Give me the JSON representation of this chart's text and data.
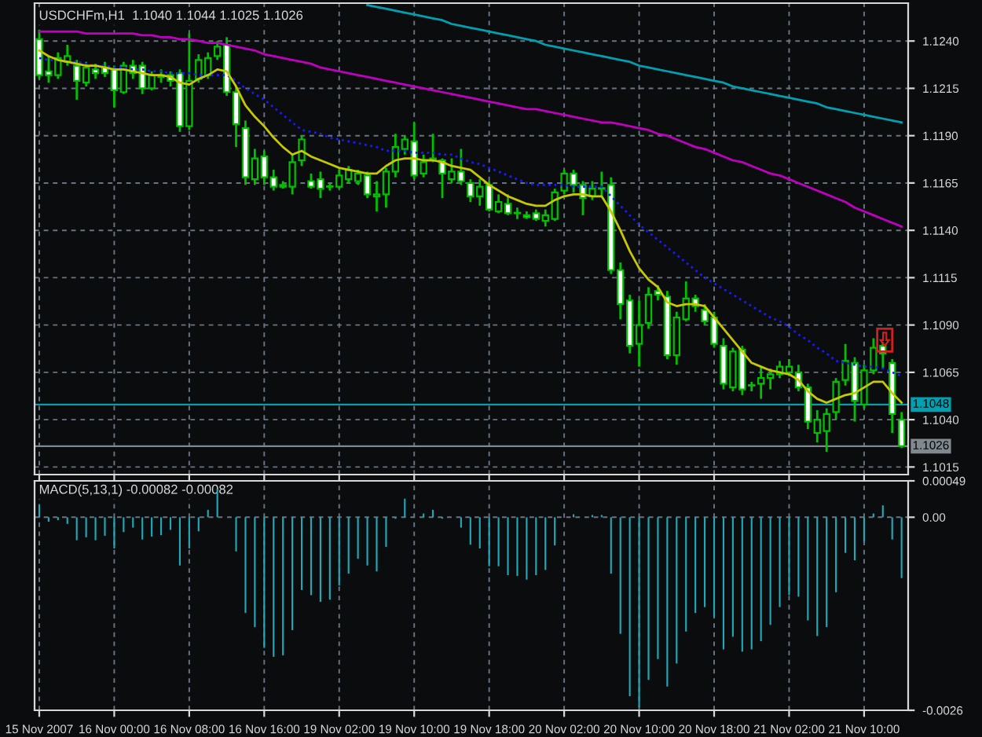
{
  "chart_data": [
    {
      "type": "candlestick",
      "title": "USDCHFm,H1  1.1040 1.1044 1.1025 1.1026",
      "ohlc": [
        [
          1.1241,
          1.1246,
          1.122,
          1.1222
        ],
        [
          1.1224,
          1.1232,
          1.1218,
          1.1222
        ],
        [
          1.1222,
          1.1234,
          1.122,
          1.1231
        ],
        [
          1.1229,
          1.1238,
          1.1227,
          1.1232
        ],
        [
          1.1227,
          1.123,
          1.1209,
          1.1219
        ],
        [
          1.1218,
          1.1229,
          1.1216,
          1.1226
        ],
        [
          1.1225,
          1.1228,
          1.122,
          1.1223
        ],
        [
          1.1226,
          1.1229,
          1.1221,
          1.1223
        ],
        [
          1.1225,
          1.1227,
          1.1205,
          1.1214
        ],
        [
          1.1213,
          1.1229,
          1.1212,
          1.1227
        ],
        [
          1.1227,
          1.123,
          1.122,
          1.1223
        ],
        [
          1.1227,
          1.1229,
          1.1212,
          1.1215
        ],
        [
          1.1215,
          1.1224,
          1.1214,
          1.1222
        ],
        [
          1.1221,
          1.1225,
          1.1218,
          1.1222
        ],
        [
          1.1222,
          1.1224,
          1.1216,
          1.1219
        ],
        [
          1.1223,
          1.1225,
          1.1192,
          1.1195
        ],
        [
          1.1195,
          1.1244,
          1.1193,
          1.1219
        ],
        [
          1.122,
          1.1233,
          1.1218,
          1.123
        ],
        [
          1.1222,
          1.1234,
          1.122,
          1.1231
        ],
        [
          1.1232,
          1.124,
          1.123,
          1.1237
        ],
        [
          1.1238,
          1.1242,
          1.1211,
          1.1213
        ],
        [
          1.1213,
          1.1216,
          1.1184,
          1.1196
        ],
        [
          1.1194,
          1.1198,
          1.1164,
          1.1168
        ],
        [
          1.1167,
          1.1183,
          1.1164,
          1.1178
        ],
        [
          1.1179,
          1.1182,
          1.1164,
          1.1168
        ],
        [
          1.1168,
          1.1172,
          1.1161,
          1.1163
        ],
        [
          1.1164,
          1.1166,
          1.1162,
          1.1163
        ],
        [
          1.1163,
          1.118,
          1.1159,
          1.1176
        ],
        [
          1.1177,
          1.119,
          1.1174,
          1.1188
        ],
        [
          1.1166,
          1.117,
          1.1162,
          1.1163
        ],
        [
          1.1167,
          1.1171,
          1.1157,
          1.1162
        ],
        [
          1.1163,
          1.1165,
          1.1161,
          1.1163
        ],
        [
          1.1163,
          1.1172,
          1.1162,
          1.1169
        ],
        [
          1.1167,
          1.1174,
          1.1165,
          1.1172
        ],
        [
          1.1166,
          1.1172,
          1.1164,
          1.117
        ],
        [
          1.1169,
          1.1171,
          1.1157,
          1.1159
        ],
        [
          1.1158,
          1.1166,
          1.115,
          1.1159
        ],
        [
          1.1159,
          1.1173,
          1.1152,
          1.1171
        ],
        [
          1.1171,
          1.1191,
          1.1168,
          1.1184
        ],
        [
          1.1183,
          1.119,
          1.118,
          1.1188
        ],
        [
          1.1187,
          1.1197,
          1.1167,
          1.1169
        ],
        [
          1.117,
          1.118,
          1.1168,
          1.1176
        ],
        [
          1.1177,
          1.1191,
          1.1176,
          1.1178
        ],
        [
          1.1177,
          1.1178,
          1.1157,
          1.117
        ],
        [
          1.1167,
          1.1178,
          1.1165,
          1.1171
        ],
        [
          1.1171,
          1.1183,
          1.1164,
          1.1166
        ],
        [
          1.1165,
          1.1167,
          1.1155,
          1.1158
        ],
        [
          1.1158,
          1.1167,
          1.1153,
          1.1163
        ],
        [
          1.1164,
          1.1166,
          1.115,
          1.1151
        ],
        [
          1.115,
          1.1159,
          1.1149,
          1.1155
        ],
        [
          1.1154,
          1.1159,
          1.1148,
          1.1149
        ],
        [
          1.1149,
          1.1152,
          1.1146,
          1.1149
        ],
        [
          1.1148,
          1.115,
          1.1146,
          1.1147
        ],
        [
          1.1149,
          1.1151,
          1.1145,
          1.1146
        ],
        [
          1.1145,
          1.1151,
          1.1142,
          1.1148
        ],
        [
          1.1146,
          1.1162,
          1.1145,
          1.116
        ],
        [
          1.1161,
          1.1172,
          1.1159,
          1.117
        ],
        [
          1.117,
          1.1172,
          1.116,
          1.1164
        ],
        [
          1.1164,
          1.1166,
          1.1148,
          1.1157
        ],
        [
          1.1158,
          1.1166,
          1.1156,
          1.1162
        ],
        [
          1.1162,
          1.1171,
          1.1158,
          1.1162
        ],
        [
          1.1164,
          1.1168,
          1.1117,
          1.1119
        ],
        [
          1.1119,
          1.1123,
          1.1093,
          1.1101
        ],
        [
          1.1103,
          1.1106,
          1.1075,
          1.1079
        ],
        [
          1.108,
          1.1103,
          1.1068,
          1.109
        ],
        [
          1.1091,
          1.111,
          1.1088,
          1.1106
        ],
        [
          1.1108,
          1.1111,
          1.1103,
          1.1106
        ],
        [
          1.1105,
          1.1108,
          1.1072,
          1.1074
        ],
        [
          1.1074,
          1.1097,
          1.1069,
          1.1094
        ],
        [
          1.1093,
          1.1113,
          1.1092,
          1.1104
        ],
        [
          1.1104,
          1.1106,
          1.1097,
          1.11
        ],
        [
          1.1098,
          1.1101,
          1.109,
          1.1092
        ],
        [
          1.1094,
          1.1097,
          1.1078,
          1.108
        ],
        [
          1.1079,
          1.1083,
          1.1056,
          1.1059
        ],
        [
          1.1057,
          1.1078,
          1.1055,
          1.1076
        ],
        [
          1.1077,
          1.1079,
          1.1053,
          1.1056
        ],
        [
          1.1058,
          1.106,
          1.1055,
          1.1058
        ],
        [
          1.1059,
          1.1068,
          1.1051,
          1.1062
        ],
        [
          1.1062,
          1.1067,
          1.1056,
          1.1064
        ],
        [
          1.1064,
          1.1071,
          1.1062,
          1.1068
        ],
        [
          1.1065,
          1.1072,
          1.1063,
          1.1068
        ],
        [
          1.1065,
          1.1069,
          1.1055,
          1.1057
        ],
        [
          1.1057,
          1.1059,
          1.1035,
          1.1039
        ],
        [
          1.1033,
          1.1045,
          1.1028,
          1.104
        ],
        [
          1.1034,
          1.1046,
          1.1023,
          1.1043
        ],
        [
          1.1044,
          1.1062,
          1.104,
          1.106
        ],
        [
          1.1061,
          1.108,
          1.1058,
          1.1071
        ],
        [
          1.107,
          1.1073,
          1.1039,
          1.105
        ],
        [
          1.1048,
          1.1069,
          1.1046,
          1.1066
        ],
        [
          1.1066,
          1.1083,
          1.1064,
          1.1078
        ],
        [
          1.1079,
          1.1081,
          1.1067,
          1.1075
        ],
        [
          1.107,
          1.1072,
          1.1033,
          1.1043
        ],
        [
          1.104,
          1.1044,
          1.1025,
          1.1026
        ]
      ],
      "series": [
        {
          "type": "line",
          "color": "#00a0b0",
          "line_style": "solid",
          "values": [
            null,
            null,
            null,
            null,
            null,
            null,
            null,
            null,
            null,
            null,
            null,
            null,
            null,
            null,
            null,
            null,
            null,
            null,
            null,
            null,
            null,
            null,
            null,
            null,
            null,
            null,
            null,
            null,
            null,
            null,
            null,
            null,
            null,
            null,
            null,
            1.1259,
            1.1258,
            1.1257,
            1.1256,
            1.1255,
            1.1254,
            1.1253,
            1.1252,
            1.1251,
            1.1249,
            1.1248,
            1.1247,
            1.1246,
            1.1245,
            1.1244,
            1.1243,
            1.1242,
            1.1241,
            1.124,
            1.1238,
            1.1237,
            1.1236,
            1.1235,
            1.1234,
            1.1233,
            1.1232,
            1.1231,
            1.123,
            1.1229,
            1.1227,
            1.1226,
            1.1225,
            1.1224,
            1.1223,
            1.1222,
            1.1221,
            1.122,
            1.1219,
            1.1218,
            1.1216,
            1.1215,
            1.1214,
            1.1213,
            1.1212,
            1.1211,
            1.121,
            1.1209,
            1.1208,
            1.1207,
            1.1205,
            1.1204,
            1.1203,
            1.1202,
            1.1201,
            1.12,
            1.1199,
            1.1198,
            1.1197
          ]
        },
        {
          "type": "line",
          "color": "#c000c0",
          "line_style": "solid",
          "values": [
            1.1245,
            1.1245,
            1.1245,
            1.1245,
            1.1245,
            1.1244,
            1.1244,
            1.1244,
            1.1244,
            1.1244,
            1.1244,
            1.1243,
            1.1243,
            1.1242,
            1.1242,
            1.1241,
            1.1241,
            1.124,
            1.1239,
            1.1239,
            1.1238,
            1.1237,
            1.1236,
            1.1235,
            1.1233,
            1.1232,
            1.1231,
            1.123,
            1.1229,
            1.1228,
            1.1226,
            1.1225,
            1.1224,
            1.1223,
            1.1222,
            1.1221,
            1.122,
            1.1219,
            1.1218,
            1.1217,
            1.1216,
            1.1215,
            1.1214,
            1.1213,
            1.1212,
            1.1211,
            1.121,
            1.1209,
            1.1208,
            1.1207,
            1.1206,
            1.1205,
            1.1204,
            1.1204,
            1.1203,
            1.1202,
            1.1201,
            1.12,
            1.1199,
            1.1198,
            1.1197,
            1.1197,
            1.1196,
            1.1195,
            1.1194,
            1.1193,
            1.1191,
            1.119,
            1.1188,
            1.1186,
            1.1184,
            1.1183,
            1.1181,
            1.1179,
            1.1177,
            1.1176,
            1.1174,
            1.1172,
            1.117,
            1.1169,
            1.1167,
            1.1165,
            1.1163,
            1.1161,
            1.1159,
            1.1157,
            1.1155,
            1.1152,
            1.115,
            1.1148,
            1.1146,
            1.1144,
            1.1142
          ]
        },
        {
          "type": "line",
          "color": "#1a1aff",
          "line_style": "dotted",
          "values": [
            1.1231,
            1.123,
            1.123,
            1.1229,
            1.1229,
            1.1228,
            1.1227,
            1.1227,
            1.1226,
            1.1226,
            1.1225,
            1.1225,
            1.1224,
            1.1224,
            1.1223,
            1.1223,
            1.1223,
            1.1222,
            1.1222,
            1.1222,
            1.1222,
            1.1219,
            1.1215,
            1.1212,
            1.1209,
            1.1205,
            1.1201,
            1.1197,
            1.1193,
            1.1192,
            1.1191,
            1.1189,
            1.1188,
            1.1187,
            1.1186,
            1.1185,
            1.1184,
            1.1182,
            1.1182,
            1.1182,
            1.1181,
            1.1181,
            1.1181,
            1.118,
            1.118,
            1.1178,
            1.1176,
            1.1175,
            1.1173,
            1.1171,
            1.1169,
            1.1167,
            1.1165,
            1.1164,
            1.1164,
            1.1164,
            1.1164,
            1.1163,
            1.1163,
            1.1163,
            1.1163,
            1.1158,
            1.1153,
            1.1148,
            1.1143,
            1.1139,
            1.1135,
            1.1131,
            1.1127,
            1.1123,
            1.1119,
            1.1115,
            1.1112,
            1.1109,
            1.1106,
            1.1103,
            1.11,
            1.1097,
            1.1094,
            1.1092,
            1.1089,
            1.1085,
            1.1082,
            1.1078,
            1.1075,
            1.1071,
            1.107,
            1.1069,
            1.1068,
            1.1068,
            1.1067,
            1.1065,
            1.1063
          ]
        },
        {
          "type": "line",
          "color": "#c8c800",
          "line_style": "solid",
          "values": [
            1.1235,
            1.1232,
            1.123,
            1.1229,
            1.1228,
            1.1227,
            1.1227,
            1.1226,
            1.1225,
            1.1225,
            1.1224,
            1.1223,
            1.1222,
            1.1222,
            1.1221,
            1.1218,
            1.1217,
            1.122,
            1.1222,
            1.1225,
            1.1224,
            1.1216,
            1.1206,
            1.12,
            1.1195,
            1.1189,
            1.1184,
            1.118,
            1.1182,
            1.1179,
            1.1177,
            1.1175,
            1.1173,
            1.1172,
            1.1171,
            1.117,
            1.117,
            1.1174,
            1.1177,
            1.1178,
            1.1178,
            1.1177,
            1.1177,
            1.1176,
            1.1174,
            1.1173,
            1.1172,
            1.1168,
            1.1164,
            1.1161,
            1.1158,
            1.1156,
            1.1154,
            1.1153,
            1.1153,
            1.1156,
            1.1158,
            1.1159,
            1.1159,
            1.1158,
            1.1158,
            1.115,
            1.114,
            1.1129,
            1.112,
            1.1114,
            1.111,
            1.1102,
            1.11,
            1.1101,
            1.1101,
            1.11,
            1.1094,
            1.1088,
            1.1082,
            1.1076,
            1.107,
            1.1068,
            1.1066,
            1.1065,
            1.1064,
            1.1061,
            1.1055,
            1.1051,
            1.1049,
            1.1051,
            1.1053,
            1.1054,
            1.1057,
            1.106,
            1.106,
            1.1054,
            1.1049
          ]
        }
      ],
      "ylim": [
        1.1011,
        1.126
      ],
      "yticks": [
        {
          "value": 1.124,
          "label": "1.1240"
        },
        {
          "value": 1.1215,
          "label": "1.1215"
        },
        {
          "value": 1.119,
          "label": "1.1190"
        },
        {
          "value": 1.1165,
          "label": "1.1165"
        },
        {
          "value": 1.114,
          "label": "1.1140"
        },
        {
          "value": 1.1115,
          "label": "1.1115"
        },
        {
          "value": 1.109,
          "label": "1.1090"
        },
        {
          "value": 1.1065,
          "label": "1.1065"
        },
        {
          "value": 1.104,
          "label": "1.1040"
        },
        {
          "value": 1.1015,
          "label": "1.1015"
        }
      ],
      "ref_lines": [
        {
          "axis": "y",
          "value": 1.1048,
          "label": "1.1048",
          "color": "#00a0b0"
        },
        {
          "axis": "y",
          "value": 1.1026,
          "label": "1.1026",
          "color": "#808890"
        }
      ],
      "grid": true,
      "tick_labels": "y"
    },
    {
      "type": "bar",
      "title": "MACD(5,13,1) -0.00082 -0.00082",
      "categories": [
        "15 Nov 2007",
        null,
        null,
        null,
        null,
        null,
        null,
        null,
        "16 Nov 00:00",
        null,
        null,
        null,
        null,
        null,
        null,
        null,
        "16 Nov 08:00",
        null,
        null,
        null,
        null,
        null,
        null,
        null,
        "16 Nov 16:00",
        null,
        null,
        null,
        null,
        null,
        null,
        null,
        "19 Nov 02:00",
        null,
        null,
        null,
        null,
        null,
        null,
        null,
        "19 Nov 10:00",
        null,
        null,
        null,
        null,
        null,
        null,
        null,
        "19 Nov 18:00",
        null,
        null,
        null,
        null,
        null,
        null,
        null,
        "20 Nov 02:00",
        null,
        null,
        null,
        null,
        null,
        null,
        null,
        "20 Nov 10:00",
        null,
        null,
        null,
        null,
        null,
        null,
        null,
        "20 Nov 18:00",
        null,
        null,
        null,
        null,
        null,
        null,
        null,
        "21 Nov 02:00",
        null,
        null,
        null,
        null,
        null,
        null,
        null,
        "21 Nov 10:00",
        null,
        null,
        null,
        null
      ],
      "values": [
        0.00017,
        -6e-05,
        -4e-05,
        -9e-05,
        -0.00031,
        -0.00027,
        -0.00031,
        -0.00025,
        -0.00042,
        -0.0002,
        -0.00014,
        -0.0003,
        -0.00026,
        -0.00024,
        -0.00017,
        -0.00065,
        -0.00042,
        -0.00019,
        0.0001,
        0.00038,
        0.0,
        -0.00046,
        -0.00129,
        -0.00148,
        -0.00176,
        -0.00188,
        -0.00186,
        -0.00152,
        -0.00098,
        -0.00105,
        -0.00114,
        -0.00111,
        -0.00092,
        -0.00076,
        -0.00056,
        -0.00065,
        -0.00073,
        -0.0004,
        -2e-05,
        0.00025,
        0.0,
        5e-05,
        0.0001,
        -2e-05,
        0.0,
        -0.00014,
        -0.00037,
        -0.00042,
        -0.00066,
        -0.00066,
        -0.00078,
        -0.00079,
        -0.00084,
        -0.00078,
        -0.00071,
        -0.00038,
        0.0,
        4e-05,
        0.0,
        3e-05,
        3e-05,
        -0.00076,
        -0.00157,
        -0.00241,
        -0.00256,
        -0.00219,
        -0.00191,
        -0.00228,
        -0.00197,
        -0.00154,
        -0.00129,
        -0.00121,
        -0.00134,
        -0.00178,
        -0.00161,
        -0.00181,
        -0.00178,
        -0.00167,
        -0.00145,
        -0.00121,
        -0.00105,
        -0.00107,
        -0.00139,
        -0.0016,
        -0.00148,
        -0.00101,
        -0.00048,
        -0.00058,
        -0.00033,
        5e-05,
        0.00016,
        -0.0003,
        -0.00082
      ],
      "color": "#20a8b8",
      "ylim": [
        -0.0026,
        0.00049
      ],
      "yticks": [
        0.00049,
        {
          "value": 0,
          "label": "0.00"
        },
        -0.0026
      ],
      "grid": true
    }
  ]
}
